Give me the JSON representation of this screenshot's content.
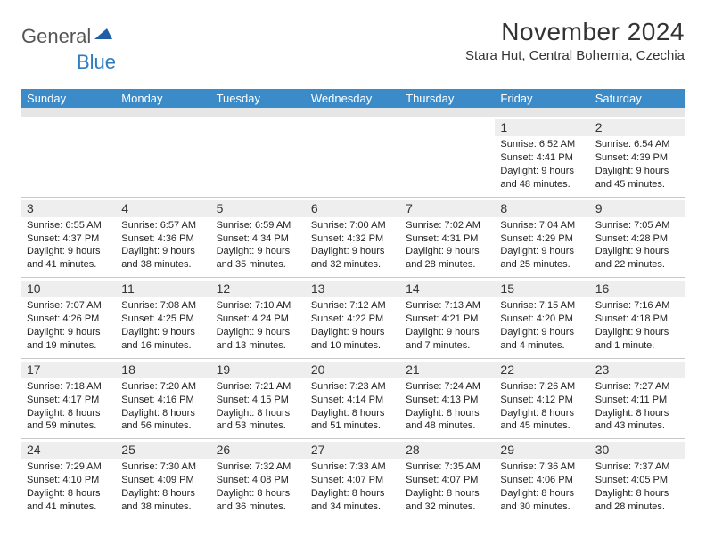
{
  "logo": {
    "part1": "General",
    "part2": "Blue",
    "color1": "#555555",
    "color2": "#2e7bbf"
  },
  "title": "November 2024",
  "location": "Stara Hut, Central Bohemia, Czechia",
  "header_bg": "#3b8bc8",
  "header_fg": "#ffffff",
  "band_bg": "#e6e6e6",
  "daynum_bg": "#eeeeee",
  "rule_color": "#c8c8c8",
  "weekdays": [
    "Sunday",
    "Monday",
    "Tuesday",
    "Wednesday",
    "Thursday",
    "Friday",
    "Saturday"
  ],
  "weeks": [
    [
      null,
      null,
      null,
      null,
      null,
      {
        "n": "1",
        "sunrise": "6:52 AM",
        "sunset": "4:41 PM",
        "dh": "9",
        "dm": "48"
      },
      {
        "n": "2",
        "sunrise": "6:54 AM",
        "sunset": "4:39 PM",
        "dh": "9",
        "dm": "45"
      }
    ],
    [
      {
        "n": "3",
        "sunrise": "6:55 AM",
        "sunset": "4:37 PM",
        "dh": "9",
        "dm": "41"
      },
      {
        "n": "4",
        "sunrise": "6:57 AM",
        "sunset": "4:36 PM",
        "dh": "9",
        "dm": "38"
      },
      {
        "n": "5",
        "sunrise": "6:59 AM",
        "sunset": "4:34 PM",
        "dh": "9",
        "dm": "35"
      },
      {
        "n": "6",
        "sunrise": "7:00 AM",
        "sunset": "4:32 PM",
        "dh": "9",
        "dm": "32"
      },
      {
        "n": "7",
        "sunrise": "7:02 AM",
        "sunset": "4:31 PM",
        "dh": "9",
        "dm": "28"
      },
      {
        "n": "8",
        "sunrise": "7:04 AM",
        "sunset": "4:29 PM",
        "dh": "9",
        "dm": "25"
      },
      {
        "n": "9",
        "sunrise": "7:05 AM",
        "sunset": "4:28 PM",
        "dh": "9",
        "dm": "22"
      }
    ],
    [
      {
        "n": "10",
        "sunrise": "7:07 AM",
        "sunset": "4:26 PM",
        "dh": "9",
        "dm": "19"
      },
      {
        "n": "11",
        "sunrise": "7:08 AM",
        "sunset": "4:25 PM",
        "dh": "9",
        "dm": "16"
      },
      {
        "n": "12",
        "sunrise": "7:10 AM",
        "sunset": "4:24 PM",
        "dh": "9",
        "dm": "13"
      },
      {
        "n": "13",
        "sunrise": "7:12 AM",
        "sunset": "4:22 PM",
        "dh": "9",
        "dm": "10"
      },
      {
        "n": "14",
        "sunrise": "7:13 AM",
        "sunset": "4:21 PM",
        "dh": "9",
        "dm": "7"
      },
      {
        "n": "15",
        "sunrise": "7:15 AM",
        "sunset": "4:20 PM",
        "dh": "9",
        "dm": "4"
      },
      {
        "n": "16",
        "sunrise": "7:16 AM",
        "sunset": "4:18 PM",
        "dh": "9",
        "dm": "1"
      }
    ],
    [
      {
        "n": "17",
        "sunrise": "7:18 AM",
        "sunset": "4:17 PM",
        "dh": "8",
        "dm": "59"
      },
      {
        "n": "18",
        "sunrise": "7:20 AM",
        "sunset": "4:16 PM",
        "dh": "8",
        "dm": "56"
      },
      {
        "n": "19",
        "sunrise": "7:21 AM",
        "sunset": "4:15 PM",
        "dh": "8",
        "dm": "53"
      },
      {
        "n": "20",
        "sunrise": "7:23 AM",
        "sunset": "4:14 PM",
        "dh": "8",
        "dm": "51"
      },
      {
        "n": "21",
        "sunrise": "7:24 AM",
        "sunset": "4:13 PM",
        "dh": "8",
        "dm": "48"
      },
      {
        "n": "22",
        "sunrise": "7:26 AM",
        "sunset": "4:12 PM",
        "dh": "8",
        "dm": "45"
      },
      {
        "n": "23",
        "sunrise": "7:27 AM",
        "sunset": "4:11 PM",
        "dh": "8",
        "dm": "43"
      }
    ],
    [
      {
        "n": "24",
        "sunrise": "7:29 AM",
        "sunset": "4:10 PM",
        "dh": "8",
        "dm": "41"
      },
      {
        "n": "25",
        "sunrise": "7:30 AM",
        "sunset": "4:09 PM",
        "dh": "8",
        "dm": "38"
      },
      {
        "n": "26",
        "sunrise": "7:32 AM",
        "sunset": "4:08 PM",
        "dh": "8",
        "dm": "36"
      },
      {
        "n": "27",
        "sunrise": "7:33 AM",
        "sunset": "4:07 PM",
        "dh": "8",
        "dm": "34"
      },
      {
        "n": "28",
        "sunrise": "7:35 AM",
        "sunset": "4:07 PM",
        "dh": "8",
        "dm": "32"
      },
      {
        "n": "29",
        "sunrise": "7:36 AM",
        "sunset": "4:06 PM",
        "dh": "8",
        "dm": "30"
      },
      {
        "n": "30",
        "sunrise": "7:37 AM",
        "sunset": "4:05 PM",
        "dh": "8",
        "dm": "28"
      }
    ]
  ]
}
